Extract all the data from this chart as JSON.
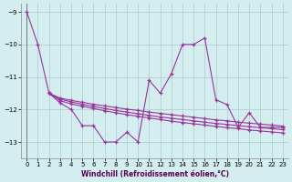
{
  "background_color": "#d4eef0",
  "line_color": "#993399",
  "grid_color": "#a8cccc",
  "xlabel": "Windchill (Refroidissement éolien,°C)",
  "x": [
    0,
    1,
    2,
    3,
    4,
    5,
    6,
    7,
    8,
    9,
    10,
    11,
    12,
    13,
    14,
    15,
    16,
    17,
    18,
    19,
    20,
    21,
    22,
    23
  ],
  "curve_main": [
    -9.0,
    -10.0,
    -11.5,
    -11.8,
    -12.0,
    -12.5,
    -12.5,
    -13.0,
    -13.0,
    -12.7,
    -13.0,
    -11.1,
    -11.5,
    -10.9,
    -10.0,
    -10.0,
    -9.8,
    -11.7,
    -11.85,
    -12.55,
    -12.1,
    -12.55,
    -12.55,
    -12.55
  ],
  "curve_straight1": [
    null,
    null,
    -11.5,
    -11.65,
    -11.72,
    -11.78,
    -11.84,
    -11.89,
    -11.94,
    -11.99,
    -12.03,
    -12.08,
    -12.12,
    -12.16,
    -12.2,
    -12.24,
    -12.28,
    -12.32,
    -12.35,
    -12.39,
    -12.42,
    -12.45,
    -12.48,
    -12.51
  ],
  "curve_straight2": [
    null,
    null,
    -11.5,
    -11.68,
    -11.77,
    -11.84,
    -11.91,
    -11.97,
    -12.03,
    -12.08,
    -12.13,
    -12.18,
    -12.23,
    -12.27,
    -12.31,
    -12.35,
    -12.39,
    -12.43,
    -12.46,
    -12.5,
    -12.53,
    -12.56,
    -12.59,
    -12.62
  ],
  "curve_straight3": [
    null,
    null,
    -11.5,
    -11.73,
    -11.83,
    -11.9,
    -11.97,
    -12.04,
    -12.1,
    -12.16,
    -12.21,
    -12.26,
    -12.31,
    -12.36,
    -12.4,
    -12.44,
    -12.48,
    -12.52,
    -12.56,
    -12.59,
    -12.63,
    -12.66,
    -12.69,
    -12.72
  ],
  "ylim": [
    -13.5,
    -8.75
  ],
  "xlim": [
    -0.5,
    23.5
  ],
  "yticks": [
    -13,
    -12,
    -11,
    -10,
    -9
  ],
  "xticks": [
    0,
    1,
    2,
    3,
    4,
    5,
    6,
    7,
    8,
    9,
    10,
    11,
    12,
    13,
    14,
    15,
    16,
    17,
    18,
    19,
    20,
    21,
    22,
    23
  ],
  "tick_fontsize": 5.0,
  "xlabel_fontsize": 5.5
}
